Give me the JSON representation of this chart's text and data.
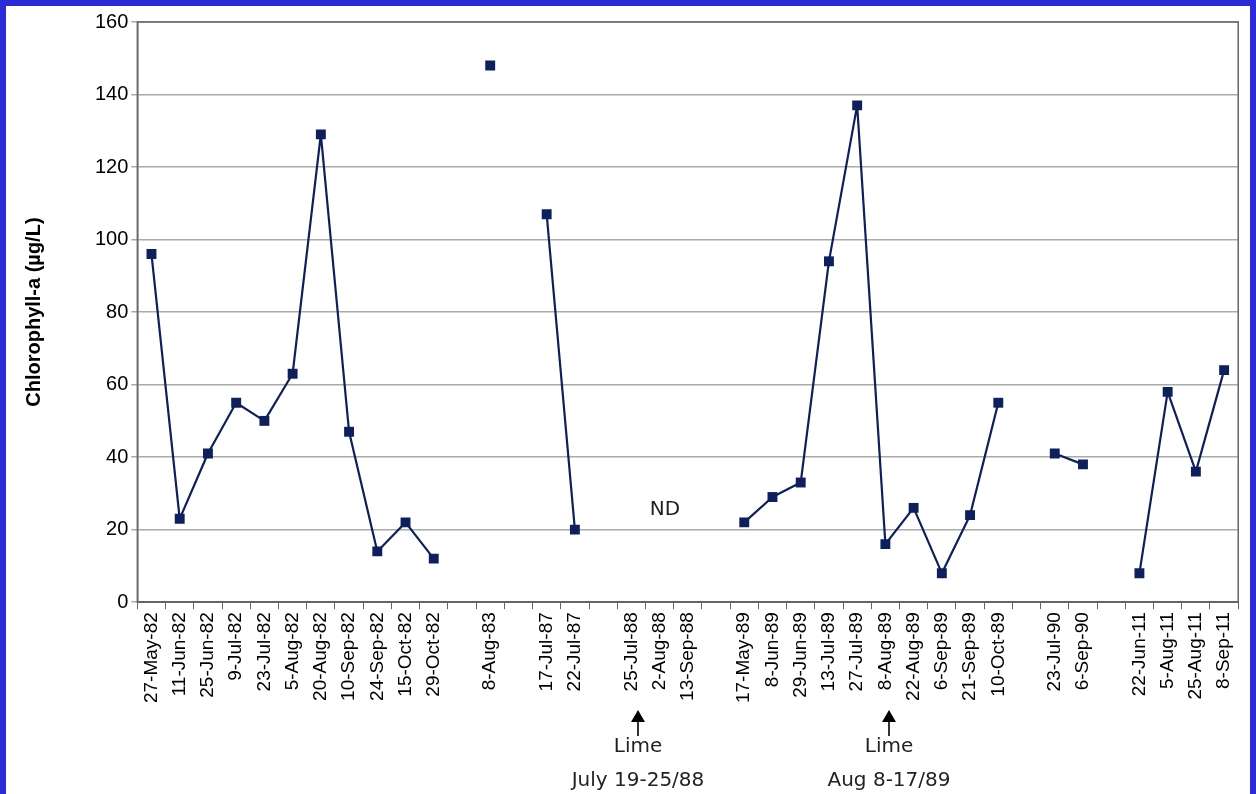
{
  "chart_data": {
    "type": "line",
    "ylabel": "Chlorophyll-a (µg/L)",
    "categories": [
      "27-May-82",
      "11-Jun-82",
      "25-Jun-82",
      "9-Jul-82",
      "23-Jul-82",
      "5-Aug-82",
      "20-Aug-82",
      "10-Sep-82",
      "24-Sep-82",
      "15-Oct-82",
      "29-Oct-82",
      null,
      "8-Aug-83",
      null,
      "17-Jul-87",
      "22-Jul-87",
      null,
      "25-Jul-88",
      "2-Aug-88",
      "13-Sep-88",
      null,
      "17-May-89",
      "8-Jun-89",
      "29-Jun-89",
      "13-Jul-89",
      "27-Jul-89",
      "8-Aug-89",
      "22-Aug-89",
      "6-Sep-89",
      "21-Sep-89",
      "10-Oct-89",
      null,
      "23-Jul-90",
      "6-Sep-90",
      null,
      "22-Jun-11",
      "5-Aug-11",
      "25-Aug-11",
      "8-Sep-11"
    ],
    "series": [
      {
        "color": "#0d1f5c",
        "values": [
          96,
          23,
          41,
          55,
          50,
          63,
          129,
          47,
          14,
          22,
          12,
          null,
          148,
          null,
          107,
          20,
          null,
          null,
          null,
          null,
          null,
          22,
          29,
          33,
          94,
          137,
          16,
          26,
          8,
          24,
          55,
          null,
          41,
          38,
          null,
          8,
          58,
          36,
          64
        ]
      }
    ],
    "ylim": [
      0,
      160
    ],
    "yticks": [
      0,
      20,
      40,
      60,
      80,
      100,
      120,
      140,
      160
    ],
    "grid": "y",
    "marker": "square",
    "line_style": "solid",
    "legend": false,
    "annotations": [
      "ND",
      "Lime\nJuly 19-25/88",
      "Lime\nAug 8-17/89"
    ]
  }
}
